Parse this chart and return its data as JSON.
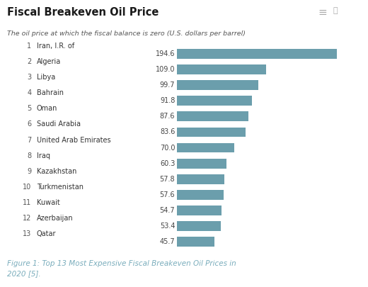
{
  "title": "Fiscal Breakeven Oil Price",
  "subtitle": "The oil price at which the fiscal balance is zero (U.S. dollars per barrel)",
  "caption": "Figure 1: Top 13 Most Expensive Fiscal Breakeven Oil Prices in\n2020 [5].",
  "countries": [
    "Iran, I.R. of",
    "Algeria",
    "Libya",
    "Bahrain",
    "Oman",
    "Saudi Arabia",
    "United Arab Emirates",
    "Iraq",
    "Kazakhstan",
    "Turkmenistan",
    "Kuwait",
    "Azerbaijan",
    "Qatar"
  ],
  "ranks": [
    1,
    2,
    3,
    4,
    5,
    6,
    7,
    8,
    9,
    10,
    11,
    12,
    13
  ],
  "values": [
    194.6,
    109.0,
    99.7,
    91.8,
    87.6,
    83.6,
    70.0,
    60.3,
    57.8,
    57.6,
    54.7,
    53.4,
    45.7
  ],
  "bar_color": "#6b9eac",
  "background_color": "#ffffff",
  "title_fontsize": 10.5,
  "subtitle_fontsize": 6.8,
  "value_fontsize": 7,
  "label_fontsize": 7,
  "rank_fontsize": 7,
  "caption_fontsize": 7.5,
  "caption_color": "#7aadbc"
}
